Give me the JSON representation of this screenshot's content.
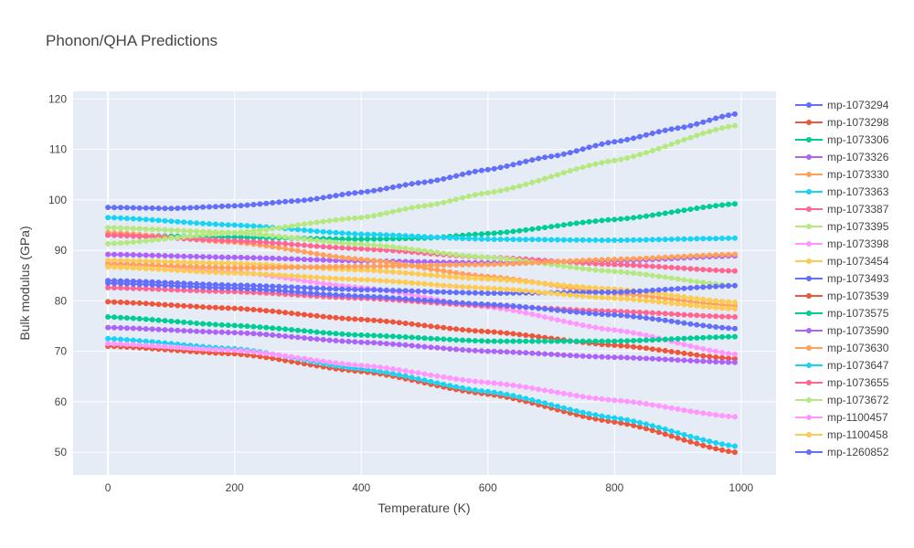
{
  "chart_data": {
    "type": "line",
    "title": "Phonon/QHA Predictions",
    "xlabel": "Temperature (K)",
    "ylabel": "Bulk modulus (GPa)",
    "xlim": [
      -55,
      1055
    ],
    "ylim": [
      45.5,
      121.5
    ],
    "x_ticks": [
      0,
      200,
      400,
      600,
      800,
      1000
    ],
    "y_ticks": [
      50,
      60,
      70,
      80,
      90,
      100,
      110,
      120
    ],
    "x_range": [
      0,
      990
    ],
    "x_step": 10,
    "grid": true,
    "legend_position": "right",
    "markers": true,
    "series": [
      {
        "name": "mp-1073294",
        "color": "#636efa",
        "anchors": [
          [
            0,
            98.5
          ],
          [
            100,
            98.3
          ],
          [
            200,
            98.8
          ],
          [
            300,
            99.8
          ],
          [
            400,
            101.5
          ],
          [
            500,
            103.5
          ],
          [
            600,
            106
          ],
          [
            700,
            108.6
          ],
          [
            800,
            111.5
          ],
          [
            900,
            114.2
          ],
          [
            990,
            117
          ]
        ]
      },
      {
        "name": "mp-1073298",
        "color": "#EF553B",
        "anchors": [
          [
            0,
            79.8
          ],
          [
            200,
            78.5
          ],
          [
            400,
            76.3
          ],
          [
            600,
            73.9
          ],
          [
            800,
            71.2
          ],
          [
            990,
            68.5
          ]
        ]
      },
      {
        "name": "mp-1073306",
        "color": "#00cc96",
        "anchors": [
          [
            0,
            93
          ],
          [
            200,
            92.6
          ],
          [
            400,
            92.2
          ],
          [
            500,
            92.4
          ],
          [
            600,
            93.3
          ],
          [
            800,
            96.1
          ],
          [
            990,
            99.2
          ]
        ]
      },
      {
        "name": "mp-1073326",
        "color": "#ab63fa",
        "anchors": [
          [
            0,
            89.2
          ],
          [
            200,
            88.6
          ],
          [
            400,
            87.9
          ],
          [
            600,
            87.5
          ],
          [
            800,
            87.9
          ],
          [
            990,
            88.9
          ]
        ]
      },
      {
        "name": "mp-1073330",
        "color": "#FFA15A",
        "anchors": [
          [
            0,
            93.5
          ],
          [
            200,
            91.6
          ],
          [
            400,
            88.2
          ],
          [
            600,
            84.8
          ],
          [
            800,
            81.5
          ],
          [
            990,
            79
          ]
        ]
      },
      {
        "name": "mp-1073363",
        "color": "#19d3f3",
        "anchors": [
          [
            0,
            96.5
          ],
          [
            200,
            95
          ],
          [
            400,
            93.2
          ],
          [
            600,
            92.2
          ],
          [
            800,
            92
          ],
          [
            990,
            92.4
          ]
        ]
      },
      {
        "name": "mp-1073387",
        "color": "#FF6692",
        "anchors": [
          [
            0,
            93
          ],
          [
            200,
            91.9
          ],
          [
            400,
            90.3
          ],
          [
            600,
            88.6
          ],
          [
            800,
            87.2
          ],
          [
            990,
            85.9
          ]
        ]
      },
      {
        "name": "mp-1073395",
        "color": "#B6E880",
        "anchors": [
          [
            0,
            94.5
          ],
          [
            200,
            93.5
          ],
          [
            400,
            91.2
          ],
          [
            600,
            88.6
          ],
          [
            800,
            85.8
          ],
          [
            990,
            83
          ]
        ]
      },
      {
        "name": "mp-1073398",
        "color": "#FF97FF",
        "anchors": [
          [
            0,
            87.5
          ],
          [
            200,
            85.7
          ],
          [
            400,
            82.6
          ],
          [
            600,
            78.8
          ],
          [
            800,
            74.2
          ],
          [
            990,
            69.4
          ]
        ]
      },
      {
        "name": "mp-1073454",
        "color": "#FECB52",
        "anchors": [
          [
            0,
            88
          ],
          [
            200,
            87.4
          ],
          [
            400,
            86.1
          ],
          [
            600,
            84.3
          ],
          [
            800,
            82.3
          ],
          [
            990,
            79.7
          ]
        ]
      },
      {
        "name": "mp-1073493",
        "color": "#636efa",
        "anchors": [
          [
            0,
            84
          ],
          [
            200,
            83.1
          ],
          [
            400,
            82.2
          ],
          [
            600,
            81.5
          ],
          [
            800,
            81.7
          ],
          [
            990,
            83
          ]
        ]
      },
      {
        "name": "mp-1073539",
        "color": "#EF553B",
        "anchors": [
          [
            0,
            71
          ],
          [
            200,
            69.5
          ],
          [
            400,
            66
          ],
          [
            600,
            61.5
          ],
          [
            800,
            56
          ],
          [
            990,
            50
          ]
        ]
      },
      {
        "name": "mp-1073575",
        "color": "#00cc96",
        "anchors": [
          [
            0,
            76.8
          ],
          [
            200,
            75.1
          ],
          [
            400,
            73.2
          ],
          [
            600,
            72
          ],
          [
            800,
            72
          ],
          [
            990,
            72.9
          ]
        ]
      },
      {
        "name": "mp-1073590",
        "color": "#ab63fa",
        "anchors": [
          [
            0,
            74.7
          ],
          [
            200,
            73.7
          ],
          [
            400,
            71.8
          ],
          [
            600,
            70
          ],
          [
            800,
            68.8
          ],
          [
            990,
            67.8
          ]
        ]
      },
      {
        "name": "mp-1073630",
        "color": "#FFA15A",
        "anchors": [
          [
            0,
            87.2
          ],
          [
            200,
            86.5
          ],
          [
            400,
            86.8
          ],
          [
            600,
            87.2
          ],
          [
            800,
            88.2
          ],
          [
            990,
            89.2
          ]
        ]
      },
      {
        "name": "mp-1073647",
        "color": "#19d3f3",
        "anchors": [
          [
            0,
            72.5
          ],
          [
            200,
            70.5
          ],
          [
            400,
            66.5
          ],
          [
            600,
            62
          ],
          [
            800,
            56.8
          ],
          [
            990,
            51.2
          ]
        ]
      },
      {
        "name": "mp-1073655",
        "color": "#FF6692",
        "anchors": [
          [
            0,
            82.6
          ],
          [
            200,
            81.8
          ],
          [
            400,
            80.5
          ],
          [
            600,
            79
          ],
          [
            800,
            77.9
          ],
          [
            990,
            76.8
          ]
        ]
      },
      {
        "name": "mp-1073672",
        "color": "#B6E880",
        "anchors": [
          [
            0,
            91.3
          ],
          [
            200,
            93.5
          ],
          [
            400,
            96.5
          ],
          [
            500,
            98.8
          ],
          [
            600,
            101.4
          ],
          [
            800,
            107.8
          ],
          [
            990,
            114.7
          ]
        ]
      },
      {
        "name": "mp-1100457",
        "color": "#FF97FF",
        "anchors": [
          [
            0,
            71.5
          ],
          [
            200,
            70.2
          ],
          [
            400,
            67.2
          ],
          [
            600,
            63.8
          ],
          [
            800,
            60.3
          ],
          [
            990,
            57
          ]
        ]
      },
      {
        "name": "mp-1100458",
        "color": "#FECB52",
        "anchors": [
          [
            0,
            86.7
          ],
          [
            200,
            85.5
          ],
          [
            400,
            84.2
          ],
          [
            600,
            82.5
          ],
          [
            800,
            80.5
          ],
          [
            990,
            78.4
          ]
        ]
      },
      {
        "name": "mp-1260852",
        "color": "#636efa",
        "anchors": [
          [
            0,
            83.5
          ],
          [
            200,
            82.5
          ],
          [
            400,
            80.9
          ],
          [
            600,
            79.3
          ],
          [
            800,
            77.2
          ],
          [
            990,
            74.5
          ]
        ]
      }
    ]
  }
}
